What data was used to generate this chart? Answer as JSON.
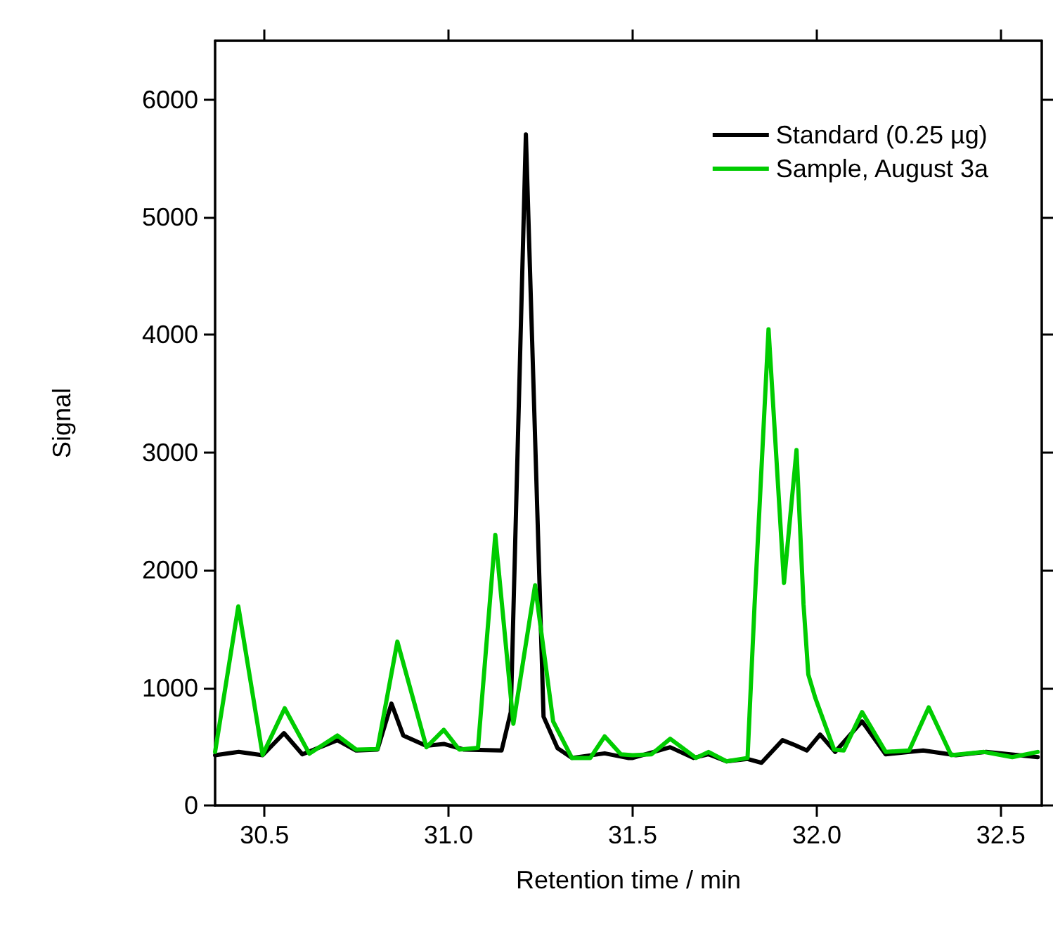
{
  "chart_data": {
    "type": "line",
    "xlabel": "Retention time / min",
    "ylabel": "Signal",
    "xlim": [
      30.366,
      32.611
    ],
    "ylim": [
      0,
      6500
    ],
    "xticks": [
      {
        "value": 30.5,
        "label": "30.5"
      },
      {
        "value": 31.0,
        "label": "31.0"
      },
      {
        "value": 31.5,
        "label": "31.5"
      },
      {
        "value": 32.0,
        "label": "32.0"
      },
      {
        "value": 32.5,
        "label": "32.5"
      }
    ],
    "yticks": [
      0,
      1000,
      2000,
      3000,
      4000,
      5000,
      6000
    ],
    "grid": false,
    "legend": "top right",
    "marker": "none",
    "line_style": "solid",
    "series": [
      {
        "name": "Standard (0.25 µg)",
        "color": "#000000",
        "x": [
          30.366,
          30.43,
          30.495,
          30.553,
          30.603,
          30.698,
          30.749,
          30.807,
          30.845,
          30.877,
          30.94,
          30.987,
          31.042,
          31.144,
          31.169,
          31.21,
          31.258,
          31.296,
          31.335,
          31.424,
          31.487,
          31.5,
          31.602,
          31.665,
          31.706,
          31.755,
          31.812,
          31.85,
          31.907,
          31.939,
          31.973,
          32.009,
          32.05,
          32.123,
          32.187,
          32.289,
          32.378,
          32.46,
          32.6
        ],
        "values": [
          427,
          455,
          427,
          615,
          435,
          555,
          467,
          475,
          866,
          595,
          507,
          523,
          475,
          467,
          794,
          5704,
          755,
          487,
          404,
          443,
          404,
          404,
          495,
          404,
          435,
          375,
          395,
          363,
          555,
          515,
          467,
          603,
          455,
          715,
          435,
          467,
          427,
          455,
          411
        ]
      },
      {
        "name": "Sample, August 3a",
        "color": "#00cc00",
        "x": [
          30.366,
          30.429,
          30.495,
          30.555,
          30.622,
          30.698,
          30.749,
          30.807,
          30.861,
          30.94,
          30.987,
          31.029,
          31.08,
          31.127,
          31.176,
          31.235,
          31.284,
          31.335,
          31.385,
          31.424,
          31.468,
          31.5,
          31.551,
          31.602,
          31.672,
          31.706,
          31.755,
          31.812,
          31.831,
          31.869,
          31.911,
          31.945,
          31.964,
          31.977,
          31.996,
          32.047,
          32.073,
          32.123,
          32.187,
          32.251,
          32.304,
          32.365,
          32.454,
          32.531,
          32.6
        ],
        "values": [
          455,
          1692,
          430,
          826,
          440,
          595,
          475,
          480,
          1393,
          495,
          643,
          475,
          490,
          2300,
          695,
          1872,
          715,
          404,
          404,
          587,
          435,
          427,
          435,
          567,
          404,
          455,
          375,
          404,
          1700,
          4048,
          1892,
          3022,
          1712,
          1114,
          914,
          475,
          467,
          794,
          455,
          467,
          834,
          427,
          455,
          411,
          455
        ]
      }
    ]
  }
}
